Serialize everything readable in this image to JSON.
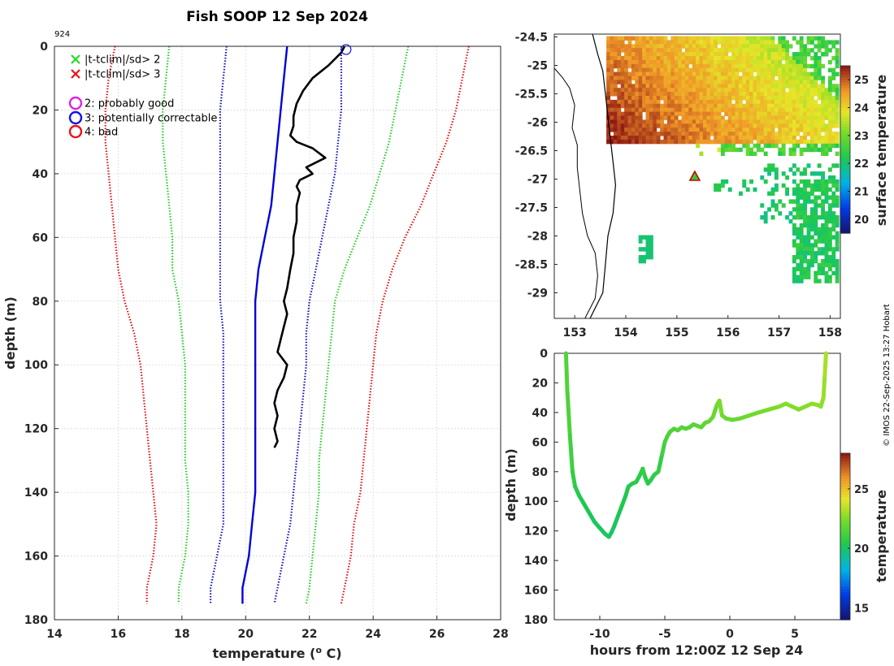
{
  "title": "Fish SOOP 12 Sep 2024",
  "profile_id": "924",
  "credit": "© IMOS 22-Sep-2025 13:27 Hobart",
  "legend": [
    {
      "marker": "x",
      "color": "#22dd22",
      "label": "|t-tclim|/sd> 2"
    },
    {
      "marker": "x",
      "color": "#ee1111",
      "label": "|t-tclim|/sd> 3"
    },
    {
      "marker": "o",
      "color": "#dd22dd",
      "label": "2: probably good"
    },
    {
      "marker": "o",
      "color": "#1111ee",
      "label": "3: potentially correctable"
    },
    {
      "marker": "o",
      "color": "#ee1111",
      "label": "4: bad"
    }
  ],
  "chart_data": [
    {
      "type": "line",
      "name": "profile",
      "xlabel": "temperature (o C)",
      "xlabel_main": "temperature (",
      "xlabel_sup": "o",
      "xlabel_end": " C)",
      "ylabel": "depth (m)",
      "xlim": [
        14,
        28
      ],
      "ylim": [
        180,
        0
      ],
      "xticks": [
        14,
        16,
        18,
        20,
        22,
        24,
        26,
        28
      ],
      "yticks": [
        0,
        20,
        40,
        60,
        80,
        100,
        120,
        140,
        160,
        180
      ],
      "grid": true,
      "depth": [
        0,
        10,
        20,
        30,
        40,
        50,
        60,
        70,
        80,
        90,
        100,
        110,
        120,
        130,
        140,
        150,
        160,
        170,
        175
      ],
      "series": [
        {
          "name": "clim -3sd",
          "style": "dotted",
          "color": "#dd1111",
          "values": [
            15.9,
            15.7,
            15.6,
            15.6,
            15.7,
            15.8,
            15.9,
            16.0,
            16.2,
            16.5,
            16.7,
            16.8,
            16.9,
            17.0,
            17.1,
            17.2,
            17.1,
            16.9,
            16.9
          ]
        },
        {
          "name": "clim -2sd",
          "style": "dotted",
          "color": "#22cc22",
          "values": [
            17.6,
            17.5,
            17.4,
            17.4,
            17.5,
            17.6,
            17.7,
            17.7,
            17.9,
            18.0,
            18.1,
            18.1,
            18.1,
            18.1,
            18.2,
            18.2,
            18.1,
            17.9,
            17.9
          ]
        },
        {
          "name": "clim -1sd",
          "style": "dotted",
          "color": "#1111bb",
          "values": [
            19.4,
            19.3,
            19.2,
            19.2,
            19.2,
            19.2,
            19.2,
            19.2,
            19.2,
            19.3,
            19.3,
            19.3,
            19.3,
            19.3,
            19.3,
            19.3,
            19.1,
            18.9,
            18.9
          ]
        },
        {
          "name": "clim mean",
          "style": "solid",
          "color": "#0000dd",
          "values": [
            21.3,
            21.2,
            21.1,
            21.0,
            20.9,
            20.8,
            20.6,
            20.4,
            20.3,
            20.3,
            20.3,
            20.3,
            20.3,
            20.3,
            20.3,
            20.2,
            20.1,
            19.9,
            19.9
          ]
        },
        {
          "name": "clim +1sd",
          "style": "dotted",
          "color": "#1111bb",
          "values": [
            23.0,
            23.0,
            23.0,
            22.9,
            22.8,
            22.6,
            22.4,
            22.2,
            22.0,
            21.9,
            21.9,
            21.8,
            21.7,
            21.6,
            21.5,
            21.4,
            21.2,
            21.0,
            20.9
          ]
        },
        {
          "name": "clim +2sd",
          "style": "dotted",
          "color": "#22cc22",
          "values": [
            25.1,
            24.9,
            24.7,
            24.5,
            24.2,
            23.9,
            23.5,
            23.1,
            22.8,
            22.7,
            22.6,
            22.5,
            22.4,
            22.3,
            22.3,
            22.2,
            22.1,
            22.0,
            21.9
          ]
        },
        {
          "name": "clim +3sd",
          "style": "dotted",
          "color": "#dd1111",
          "values": [
            27.0,
            26.8,
            26.6,
            26.3,
            25.9,
            25.5,
            25.0,
            24.6,
            24.3,
            24.1,
            24.0,
            23.9,
            23.8,
            23.7,
            23.6,
            23.4,
            23.3,
            23.1,
            23.0
          ]
        },
        {
          "name": "observed",
          "style": "solid",
          "color": "#000000",
          "depth": [
            0,
            2,
            6,
            10,
            14,
            18,
            22,
            25,
            28,
            30,
            32,
            35,
            36,
            38,
            40,
            42,
            44,
            46,
            50,
            55,
            60,
            65,
            70,
            76,
            80,
            84,
            88,
            92,
            96,
            100,
            104,
            108,
            112,
            116,
            120,
            124,
            126
          ],
          "values": [
            23.1,
            23.0,
            22.6,
            22.1,
            21.8,
            21.6,
            21.5,
            21.5,
            21.4,
            21.6,
            22.1,
            22.5,
            22.3,
            21.9,
            22.1,
            21.7,
            21.6,
            21.7,
            21.6,
            21.6,
            21.5,
            21.5,
            21.4,
            21.3,
            21.2,
            21.3,
            21.2,
            21.1,
            21.0,
            21.3,
            21.2,
            21.0,
            20.9,
            21.0,
            20.9,
            21.0,
            20.9
          ]
        }
      ],
      "qc_marker": {
        "temperature": 23.15,
        "depth": 1,
        "flag": "3: potentially correctable",
        "color": "#1111ee"
      }
    },
    {
      "type": "heatmap",
      "name": "map",
      "xlim": [
        152.6,
        158.2
      ],
      "ylim": [
        -29.45,
        -24.45
      ],
      "xticks": [
        153,
        154,
        155,
        156,
        157,
        158
      ],
      "yticks": [
        -24.5,
        -25,
        -25.5,
        -26,
        -26.5,
        -27,
        -27.5,
        -28,
        -28.5,
        -29
      ],
      "colorbar_label": "surface temperature",
      "clim": [
        19.5,
        25.5
      ],
      "colorbar_ticks": [
        20,
        21,
        22,
        23,
        24,
        25
      ],
      "station": {
        "lon": 155.35,
        "lat": -26.95
      }
    },
    {
      "type": "scatter",
      "name": "depth-time",
      "xlabel": "hours from 12:00Z 12 Sep 24",
      "ylabel": "depth (m)",
      "xlim": [
        -13.5,
        8.5
      ],
      "ylim": [
        180,
        0
      ],
      "xticks": [
        -10,
        -5,
        0,
        5
      ],
      "yticks": [
        0,
        20,
        40,
        60,
        80,
        100,
        120,
        140,
        160,
        180
      ],
      "colorbar_label": "temperature",
      "clim": [
        14,
        28
      ],
      "colorbar_ticks": [
        15,
        20,
        25
      ],
      "hours": [
        -12.6,
        -12.5,
        -12.3,
        -12.1,
        -11.9,
        -11.6,
        -11.2,
        -10.8,
        -10.4,
        -10.0,
        -9.6,
        -9.3,
        -9.1,
        -8.9,
        -8.6,
        -8.3,
        -8.0,
        -7.8,
        -7.5,
        -7.2,
        -6.9,
        -6.7,
        -6.5,
        -6.3,
        -6.1,
        -5.8,
        -5.5,
        -5.2,
        -5.0,
        -4.8,
        -4.6,
        -4.3,
        -4.0,
        -3.7,
        -3.4,
        -3.1,
        -2.8,
        -2.5,
        -2.2,
        -1.9,
        -1.6,
        -1.3,
        -1.0,
        -0.8,
        -0.6,
        -0.3,
        0.2,
        0.8,
        1.5,
        2.2,
        3.0,
        3.8,
        4.3,
        4.8,
        5.3,
        5.8,
        6.3,
        6.8,
        7.0,
        7.2,
        7.3,
        7.4
      ],
      "depths": [
        0,
        25,
        55,
        80,
        90,
        96,
        102,
        108,
        114,
        118,
        122,
        124,
        121,
        117,
        110,
        103,
        96,
        90,
        88,
        87,
        82,
        78,
        84,
        88,
        86,
        82,
        80,
        68,
        60,
        56,
        53,
        51,
        52,
        50,
        51,
        50,
        48,
        49,
        50,
        47,
        46,
        43,
        35,
        32,
        42,
        44,
        45,
        44,
        42,
        40,
        38,
        36,
        34,
        36,
        38,
        36,
        34,
        35,
        36,
        30,
        15,
        0
      ],
      "temps": [
        21.5,
        21.4,
        21.1,
        20.8,
        20.5,
        20.4,
        20.3,
        20.2,
        20.1,
        20.1,
        20.0,
        20.0,
        20.0,
        20.1,
        20.2,
        20.3,
        20.4,
        20.5,
        20.5,
        20.6,
        20.7,
        20.8,
        20.6,
        20.5,
        20.6,
        20.7,
        20.8,
        21.1,
        21.3,
        21.4,
        21.5,
        21.5,
        21.5,
        21.6,
        21.6,
        21.6,
        21.7,
        21.7,
        21.7,
        21.8,
        21.9,
        22.0,
        22.3,
        22.4,
        22.1,
        22.0,
        22.0,
        22.1,
        22.2,
        22.3,
        22.4,
        22.5,
        22.6,
        22.5,
        22.5,
        22.6,
        22.7,
        22.7,
        22.7,
        22.9,
        23.1,
        23.2
      ]
    }
  ]
}
